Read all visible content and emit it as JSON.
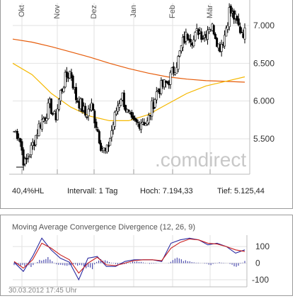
{
  "chart_data": [
    {
      "type": "candlestick",
      "title": "",
      "months": [
        "Okt",
        "Nov",
        "Dez",
        "Jan",
        "Feb",
        "Mär"
      ],
      "y_ticks": [
        "7.000",
        "6.500",
        "6.000",
        "5.500"
      ],
      "ylim": [
        5.05,
        7.3
      ],
      "watermark": ".comdirect",
      "close_series": [
        5.6,
        5.55,
        5.15,
        5.3,
        5.5,
        5.7,
        5.8,
        5.95,
        5.75,
        6.1,
        6.3,
        6.4,
        6.05,
        5.95,
        5.8,
        5.95,
        5.7,
        5.4,
        5.3,
        5.6,
        5.9,
        6.1,
        5.85,
        5.7,
        5.7,
        5.75,
        5.7,
        5.95,
        6.15,
        6.2,
        6.25,
        6.4,
        6.55,
        6.8,
        6.9,
        6.8,
        6.95,
        6.85,
        7.0,
        6.95,
        6.7,
        6.85,
        7.2,
        7.1,
        6.95,
        6.9
      ],
      "series": [
        {
          "name": "",
          "color": "#e65c0a",
          "values": [
            6.82,
            6.78,
            6.72,
            6.65,
            6.58,
            6.5,
            6.43,
            6.37,
            6.32,
            6.29,
            6.27,
            6.26,
            6.25
          ]
        },
        {
          "name": "",
          "color": "#f5b800",
          "values": [
            6.5,
            6.35,
            6.1,
            5.92,
            5.8,
            5.74,
            5.74,
            5.82,
            5.96,
            6.1,
            6.2,
            6.26,
            6.32
          ]
        }
      ],
      "stats": {
        "range": "40,4%HL",
        "interval": "Intervall: 1 Tag",
        "high": "Hoch:  7.194,33",
        "low": "Tief:  5.125,44"
      }
    },
    {
      "type": "line",
      "title": "Moving Average Convergence Divergence (12, 26, 9)",
      "y_ticks": [
        "100",
        "0",
        "-100"
      ],
      "ylim": [
        -130,
        160
      ],
      "series": [
        {
          "name": "",
          "color": "#2a2aa0",
          "values": [
            5,
            -50,
            40,
            150,
            80,
            30,
            5,
            -100,
            30,
            40,
            -20,
            -20,
            10,
            20,
            20,
            20,
            10,
            120,
            140,
            150,
            140,
            110,
            120,
            100,
            60,
            80
          ]
        },
        {
          "name": "",
          "color": "#c81e1e",
          "values": [
            10,
            -30,
            20,
            120,
            90,
            50,
            20,
            -60,
            0,
            35,
            -10,
            -15,
            0,
            15,
            20,
            20,
            15,
            90,
            125,
            145,
            140,
            120,
            115,
            100,
            80,
            70
          ]
        }
      ],
      "histogram": [
        -10,
        -15,
        -20,
        20,
        30,
        -10,
        -20,
        -10,
        -15,
        -40,
        30,
        10,
        -10,
        -5,
        10,
        5,
        -5,
        0,
        0,
        30,
        15,
        5,
        0,
        -10,
        5,
        0,
        -20,
        10
      ],
      "timestamp": "30.03.2012 17:45 Uhr"
    }
  ]
}
